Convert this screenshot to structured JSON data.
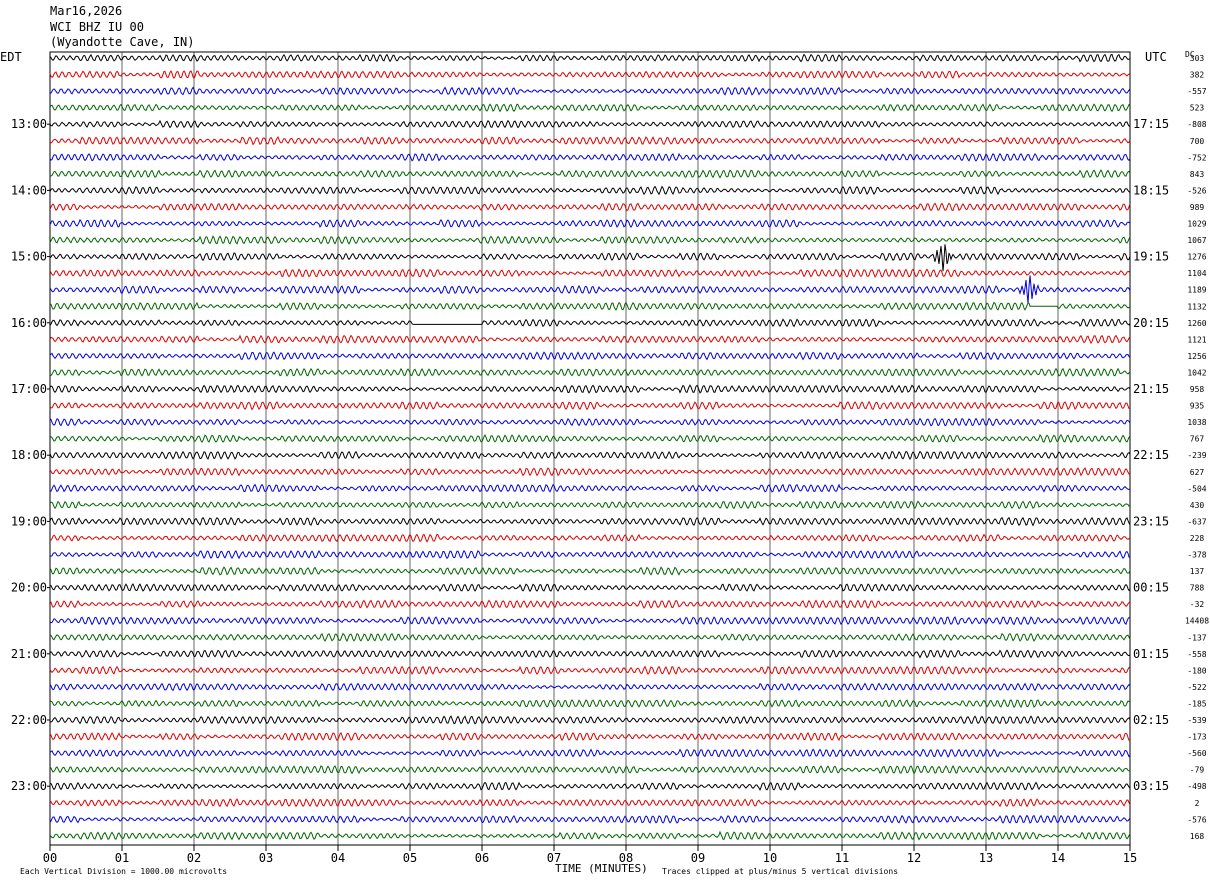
{
  "header": {
    "date": "Mar16,2026",
    "station": "WCI BHZ IU 00",
    "location": "(Wyandotte Cave, IN)"
  },
  "left_tz": "EDT",
  "right_tz": "UTC",
  "dc_label": "DC",
  "footer": {
    "scale_note": "Each Vertical Division = 1000.00 microvolts",
    "xlabel": "TIME (MINUTES)",
    "clip_note": "Traces clipped at plus/minus 5 vertical divisions"
  },
  "chart_data": {
    "type": "line",
    "title": "WCI BHZ IU 00 (Wyandotte Cave, IN) Mar16,2026",
    "xlabel": "TIME (MINUTES)",
    "xlim": [
      0,
      15
    ],
    "x_ticks": [
      "00",
      "01",
      "02",
      "03",
      "04",
      "05",
      "06",
      "07",
      "08",
      "09",
      "10",
      "11",
      "12",
      "13",
      "14",
      "15"
    ],
    "left_hour_labels": [
      "13:00",
      "14:00",
      "15:00",
      "16:00",
      "17:00",
      "18:00",
      "19:00",
      "20:00",
      "21:00",
      "22:00",
      "23:00"
    ],
    "right_hour_labels": [
      "17:15",
      "18:15",
      "19:15",
      "20:15",
      "21:15",
      "22:15",
      "23:15",
      "00:15",
      "01:15",
      "02:15",
      "03:15"
    ],
    "first_hour_label_row": 4,
    "rows_per_hour": 4,
    "row_count": 48,
    "trace_colors": [
      "#000000",
      "#dd0000",
      "#0000dd",
      "#006600"
    ],
    "dc_offsets": [
      "303",
      "382",
      "-557",
      "523",
      "-808",
      "700",
      "-752",
      "843",
      "-526",
      "989",
      "1029",
      "1067",
      "1276",
      "1104",
      "1189",
      "1132",
      "1260",
      "1121",
      "1256",
      "1042",
      "958",
      "935",
      "1038",
      "767",
      "-239",
      "627",
      "-504",
      "430",
      "-637",
      "228",
      "-378",
      "137",
      "788",
      "-32",
      "14408",
      "-137",
      "-558",
      "-180",
      "-522",
      "-185",
      "-539",
      "-173",
      "-560",
      "-79",
      "-498",
      "2",
      "-576",
      "168"
    ],
    "events": [
      {
        "row": 12,
        "minute": 12.4,
        "amplitude": "large"
      },
      {
        "row": 14,
        "minute": 13.6,
        "amplitude": "large"
      },
      {
        "row": 15,
        "minute": 13.6,
        "amplitude": "flat-after"
      },
      {
        "row": 16,
        "minute": 5.05,
        "amplitude": "gap-until-6"
      }
    ]
  }
}
